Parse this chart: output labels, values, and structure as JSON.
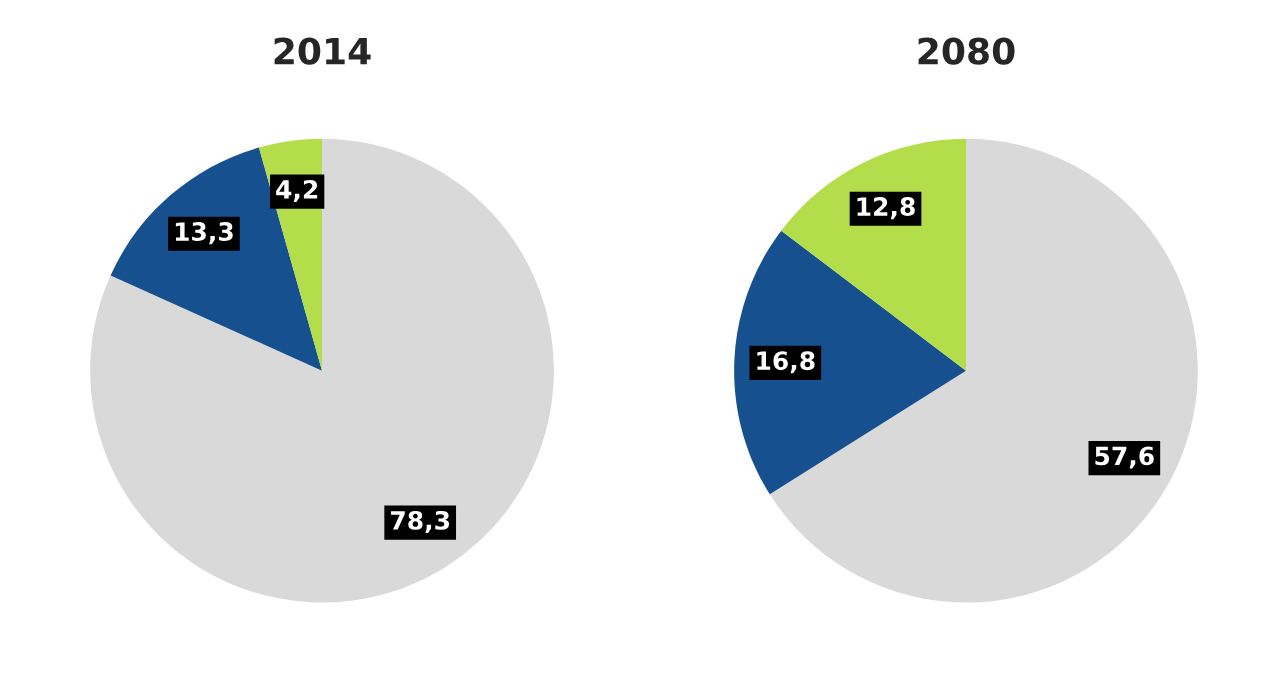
{
  "chart_data": [
    {
      "type": "pie",
      "title": "2014",
      "categories": [
        null,
        null,
        null
      ],
      "values": [
        78.3,
        13.3,
        4.2
      ],
      "colors": [
        "#d9d9d9",
        "#17508f",
        "#b3dd4a"
      ],
      "value_labels": [
        "78,3",
        "13,3",
        "4,2"
      ]
    },
    {
      "type": "pie",
      "title": "2080",
      "categories": [
        null,
        null,
        null
      ],
      "values": [
        57.6,
        16.8,
        12.8
      ],
      "colors": [
        "#d9d9d9",
        "#17508f",
        "#b3dd4a"
      ],
      "value_labels": [
        "57,6",
        "16,8",
        "12,8"
      ]
    }
  ]
}
